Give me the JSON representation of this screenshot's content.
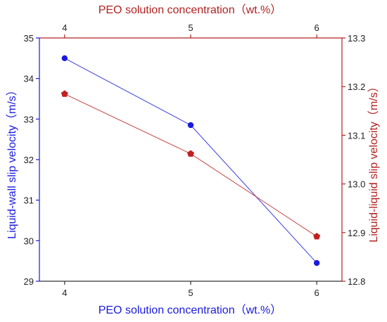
{
  "chart_data": {
    "type": "line",
    "x_bottom_label": "PEO solution concentration（wt.%）",
    "x_top_label": "PEO solution concentration（wt.%）",
    "y_left_label": "Liquid-wall slip velocity（m/s）",
    "y_right_label": "Liquid-liquid slip velocity（m/s）",
    "x_categories": [
      "4",
      "5",
      "6"
    ],
    "x": [
      4,
      5,
      6
    ],
    "xlim": [
      3.8,
      6.2
    ],
    "y_left_lim": [
      29,
      35
    ],
    "y_right_lim": [
      12.8,
      13.3
    ],
    "y_left_ticks": [
      "29",
      "30",
      "31",
      "32",
      "33",
      "34",
      "35"
    ],
    "y_right_ticks": [
      "12.8",
      "12.9",
      "13.0",
      "13.1",
      "13.2",
      "13.3"
    ],
    "series": [
      {
        "axis": "left",
        "values": [
          34.5,
          32.85,
          29.45
        ],
        "color": "#1a1adf",
        "marker": "circle"
      },
      {
        "axis": "right",
        "values": [
          13.185,
          13.062,
          12.892
        ],
        "color": "#c02020",
        "marker": "pentagon"
      }
    ],
    "colors": {
      "left_axis": "#1a1adf",
      "right_axis": "#b22222",
      "frame": "#333333"
    },
    "grid": false,
    "legend": "none"
  }
}
